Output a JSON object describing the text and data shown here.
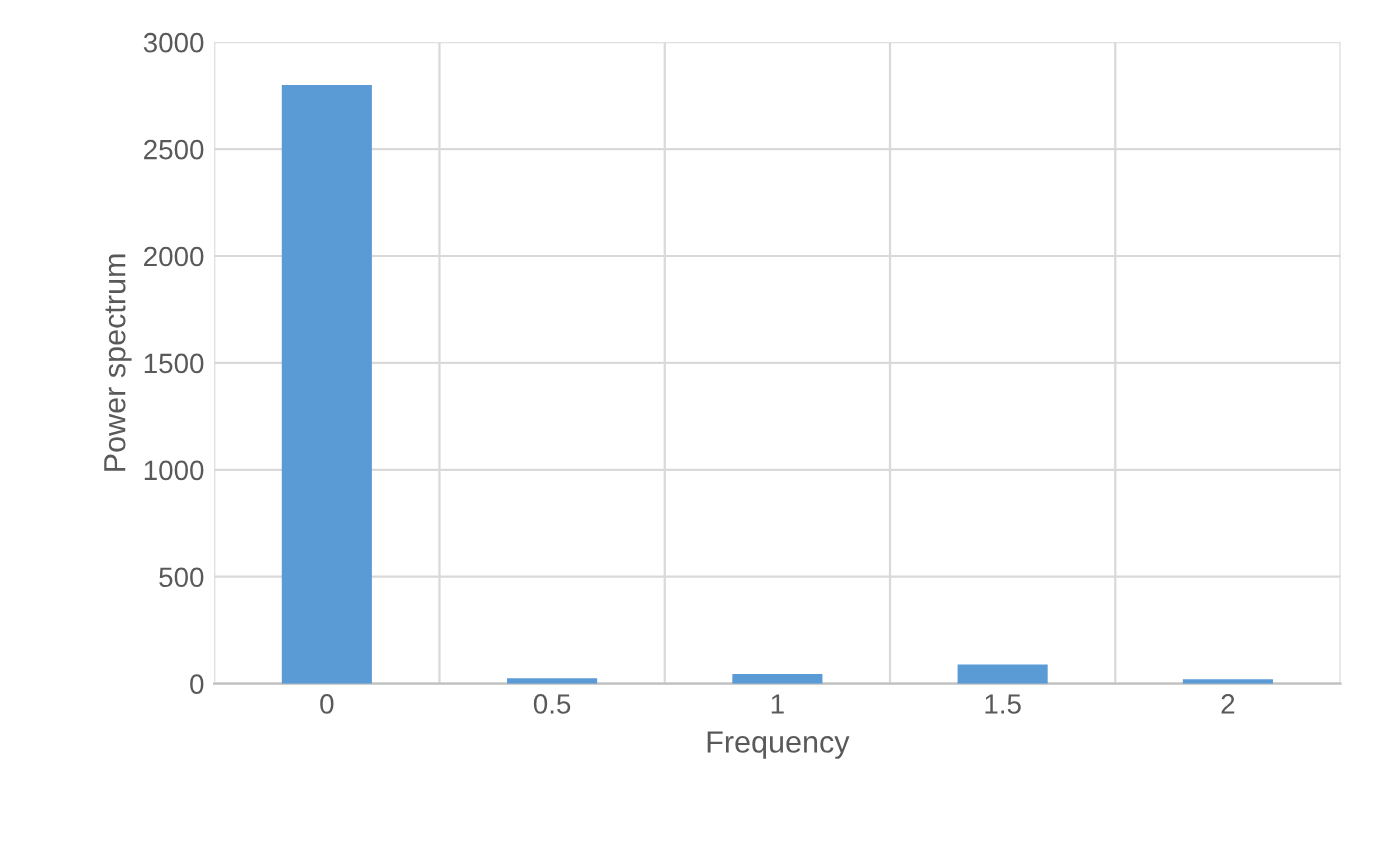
{
  "chart_data": {
    "type": "bar",
    "xlabel": "Frequency",
    "ylabel": "Power spectrum",
    "categories": [
      "0",
      "0.5",
      "1",
      "1.5",
      "2"
    ],
    "values": [
      2800,
      25,
      45,
      90,
      20
    ],
    "color": "#5b9bd5",
    "ylim": [
      0,
      3000
    ],
    "yticks": [
      0,
      500,
      1000,
      1500,
      2000,
      2500,
      3000
    ],
    "grid": true
  }
}
